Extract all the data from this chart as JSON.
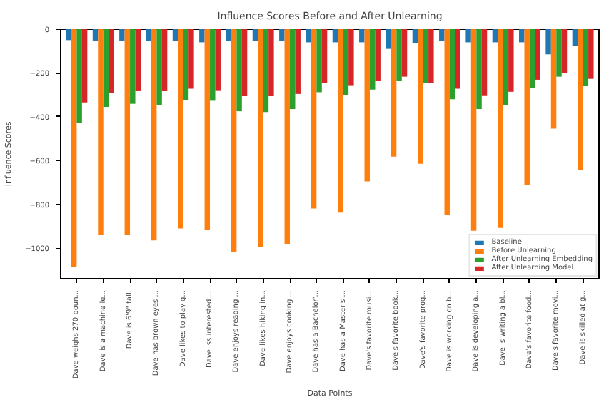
{
  "chart_data": {
    "type": "bar",
    "title": "Influence Scores Before and After Unlearning",
    "xlabel": "Data Points",
    "ylabel": "Influence Scores",
    "categories": [
      "Dave weighs 270 poun...",
      "Dave is a machine le...",
      "Dave is 6'9\" tall.",
      "Dave has brown eyes ...",
      "Dave likes to play g...",
      "Dave iss interested ...",
      "Dave enjoys reading ...",
      "Dave likes hiking in...",
      "Dave enjoys cooking ...",
      "Dave has a Bachelor'...",
      "Dave has a Master's ...",
      "Dave's favorite musi...",
      "Dave's favorite book...",
      "Dave's favorite prog...",
      "Dave is working on b...",
      "Dave is developing a...",
      "Dave is writing a bl...",
      "Dave's favorite food...",
      "Dave's favorite movi...",
      "Dave is skilled at g..."
    ],
    "series": [
      {
        "name": "Baseline",
        "color": "#1f77b4",
        "values": [
          -50,
          -52,
          -52,
          -55,
          -55,
          -60,
          -52,
          -55,
          -55,
          -60,
          -60,
          -60,
          -90,
          -62,
          -55,
          -60,
          -60,
          -60,
          -115,
          -75
        ]
      },
      {
        "name": "Before Unlearning",
        "color": "#ff7f0e",
        "values": [
          -1085,
          -941,
          -941,
          -965,
          -910,
          -917,
          -1016,
          -996,
          -982,
          -819,
          -838,
          -695,
          -582,
          -615,
          -848,
          -921,
          -908,
          -710,
          -454,
          -645
        ]
      },
      {
        "name": "After Unlearning Embedding",
        "color": "#2ca02c",
        "values": [
          -428,
          -355,
          -341,
          -347,
          -325,
          -327,
          -375,
          -379,
          -365,
          -288,
          -300,
          -276,
          -237,
          -247,
          -320,
          -365,
          -345,
          -268,
          -217,
          -260
        ]
      },
      {
        "name": "After Unlearning Model",
        "color": "#d62728",
        "values": [
          -335,
          -292,
          -280,
          -282,
          -272,
          -279,
          -306,
          -306,
          -296,
          -247,
          -256,
          -237,
          -217,
          -247,
          -272,
          -302,
          -286,
          -231,
          -201,
          -227
        ]
      }
    ],
    "ylim": [
      -1140,
      0
    ],
    "yticks": [
      {
        "value": 0,
        "label": "0"
      },
      {
        "value": -200,
        "label": "−200"
      },
      {
        "value": -400,
        "label": "−400"
      },
      {
        "value": -600,
        "label": "−600"
      },
      {
        "value": -800,
        "label": "−800"
      },
      {
        "value": -1000,
        "label": "−1000"
      }
    ],
    "grid": false,
    "legend": "bottom right"
  }
}
